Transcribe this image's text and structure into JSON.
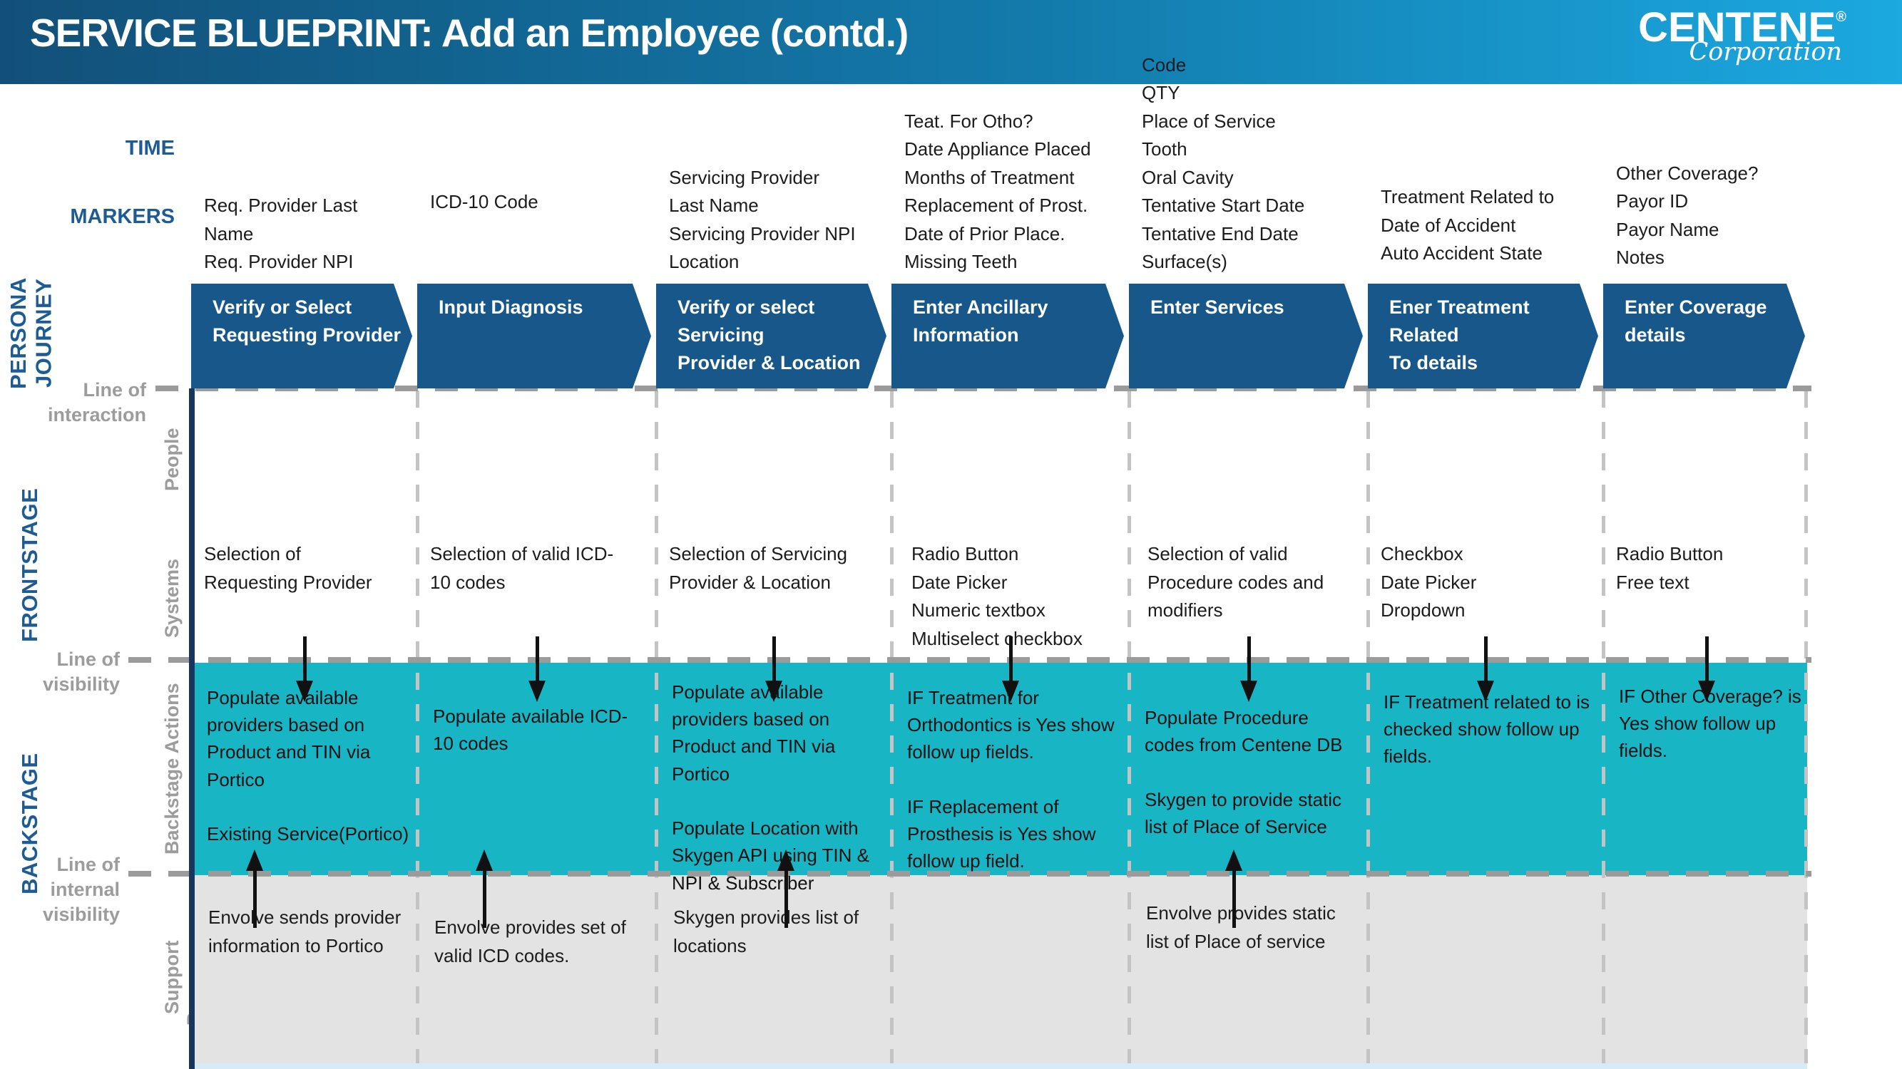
{
  "header": {
    "title": "SERVICE BLUEPRINT: Add an Employee (contd.)",
    "logo_name": "CENTENE",
    "logo_reg": "®",
    "logo_sub": "Corporation"
  },
  "colors": {
    "header_left": "#125079",
    "header_right": "#1ba9e0",
    "banner_blue": "#17578a",
    "teal_band": "#18b5c4",
    "support_band": "#e3e3e3",
    "label_blue": "#1d5b94",
    "label_gray": "#9c9c9c"
  },
  "axis": {
    "time_label": "TIME",
    "markers_label": "MARKERS"
  },
  "lanes": {
    "persona_journey": "PERSONA\nJOURNEY",
    "frontstage": "FRONTSTAGE",
    "backstage": "BACKSTAGE",
    "people": "People",
    "systems": "Systems",
    "backstage_actions": "Backstage Actions",
    "support_processes": "Support Processes",
    "line_of_interaction": "Line of interaction",
    "line_of_visibility": "Line of visibility",
    "line_of_internal_visibility": "Line of internal\nvisibility"
  },
  "columns": [
    {
      "marker": "Req. Provider Last\nName\nReq. Provider NPI",
      "step": "Verify or Select\nRequesting Provider",
      "front": "Selection of\nRequesting Provider",
      "back": "Populate available\nproviders based on\nProduct and TIN via\nPortico\n\nExisting Service(Portico)",
      "support": "Envolve sends provider\ninformation to Portico"
    },
    {
      "marker": "ICD-10 Code",
      "step": "Input Diagnosis",
      "front": "Selection of valid ICD-\n10 codes",
      "back": "Populate available ICD-\n10 codes",
      "support": "Envolve provides set of\nvalid ICD codes."
    },
    {
      "marker": "Servicing Provider\nLast Name\nServicing Provider NPI\nLocation",
      "step": "Verify or select Servicing\nProvider & Location",
      "front": "Selection of Servicing\nProvider & Location",
      "back": "Populate available\nproviders based on\nProduct and TIN via\nPortico\n\nPopulate Location with\nSkygen API using TIN &\nNPI & Subscriber",
      "support": "Skygen provides list of\nlocations"
    },
    {
      "marker": "Teat. For Otho?\nDate Appliance Placed\nMonths of Treatment\nReplacement of Prost.\nDate of Prior Place.\nMissing Teeth",
      "step": "Enter Ancillary\nInformation",
      "front": "Radio Button\nDate Picker\nNumeric textbox\nMultiselect checkbox",
      "back": "IF Treatment for\nOrthodontics is Yes show\nfollow up fields.\n\nIF Replacement of\nProsthesis is Yes show\nfollow up field.",
      "support": ""
    },
    {
      "marker": "Code\nQTY\nPlace of Service\nTooth\nOral Cavity\nTentative Start Date\nTentative End Date\nSurface(s)",
      "step": "Enter Services",
      "front": "Selection of valid\nProcedure codes and\nmodifiers",
      "back": "Populate Procedure\ncodes from Centene DB\n\nSkygen to provide static\nlist of Place of Service",
      "support": "Envolve provides static\nlist of Place of service"
    },
    {
      "marker": "Treatment Related to\nDate of Accident\nAuto Accident State",
      "step": "Ener Treatment Related\nTo details",
      "front": "Checkbox\nDate Picker\nDropdown",
      "back": "IF Treatment related to is\nchecked show follow up\nfields.",
      "support": ""
    },
    {
      "marker": "Other Coverage?\nPayor ID\nPayor Name\nNotes",
      "step": "Enter Coverage details",
      "front": "Radio Button\nFree text",
      "back": "IF Other Coverage? is\nYes show follow up\nfields.",
      "support": ""
    }
  ]
}
